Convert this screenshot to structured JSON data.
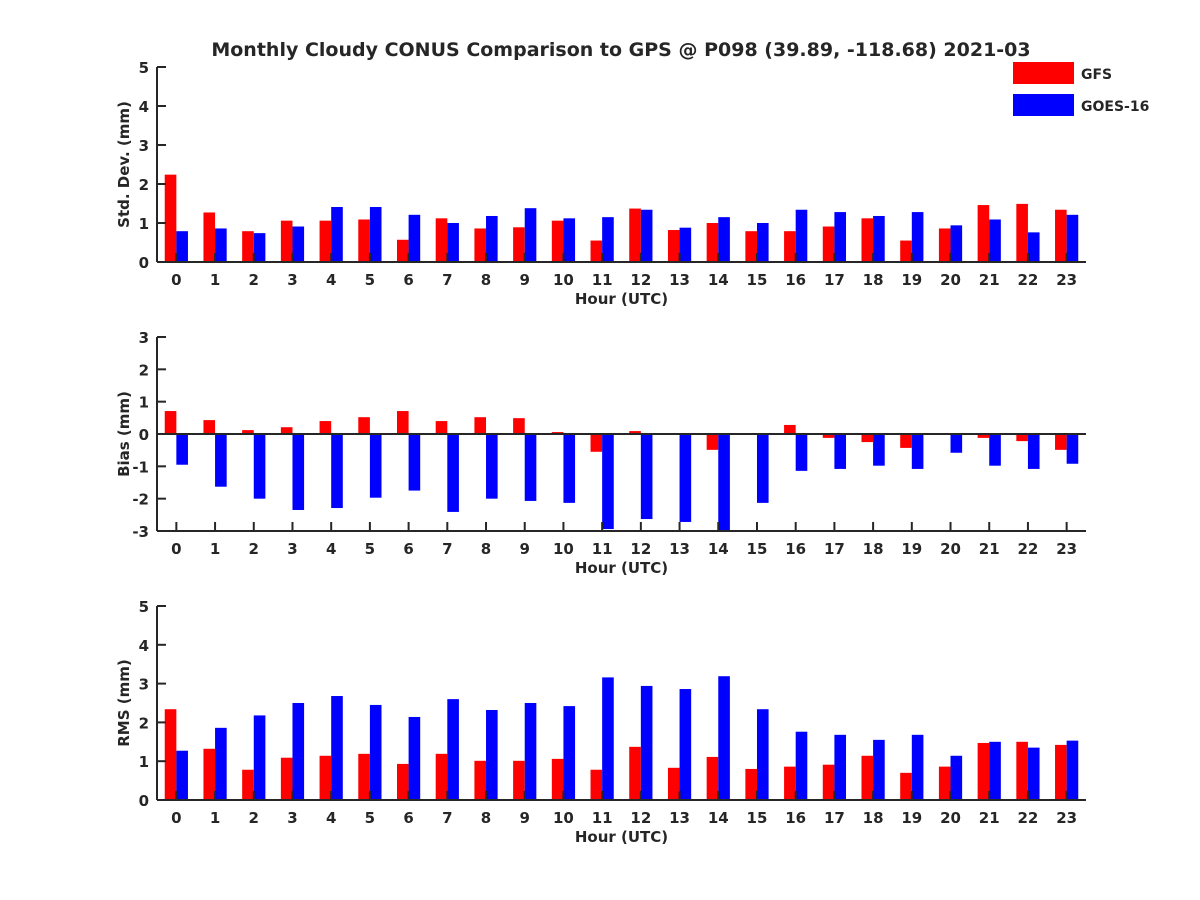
{
  "figure": {
    "title": "Monthly Cloudy CONUS Comparison to GPS @ P098 (39.89, -118.68) 2021-03",
    "legend": [
      {
        "name": "GFS",
        "color": "#ff0000"
      },
      {
        "name": "GOES-16",
        "color": "#0000ff"
      }
    ],
    "legend_position": "top-right"
  },
  "chart_data": [
    {
      "type": "bar",
      "xlabel": "Hour (UTC)",
      "ylabel": "Std. Dev. (mm)",
      "ylim": [
        0,
        5
      ],
      "yticks": [
        "0",
        "1",
        "2",
        "3",
        "4",
        "5"
      ],
      "categories": [
        "0",
        "1",
        "2",
        "3",
        "4",
        "5",
        "6",
        "7",
        "8",
        "9",
        "10",
        "11",
        "12",
        "13",
        "14",
        "15",
        "16",
        "17",
        "18",
        "19",
        "20",
        "21",
        "22",
        "23"
      ],
      "series": [
        {
          "name": "GFS",
          "color": "#ff0000",
          "values": [
            2.24,
            1.27,
            0.79,
            1.06,
            1.06,
            1.09,
            0.57,
            1.12,
            0.86,
            0.89,
            1.06,
            0.55,
            1.37,
            0.82,
            1.0,
            0.79,
            0.79,
            0.91,
            1.12,
            0.55,
            0.86,
            1.46,
            1.49,
            1.34
          ]
        },
        {
          "name": "GOES-16",
          "color": "#0000ff",
          "values": [
            0.79,
            0.86,
            0.74,
            0.91,
            1.41,
            1.41,
            1.21,
            1.0,
            1.18,
            1.38,
            1.12,
            1.15,
            1.34,
            0.88,
            1.15,
            1.0,
            1.34,
            1.28,
            1.18,
            1.28,
            0.94,
            1.09,
            0.76,
            1.21
          ]
        }
      ]
    },
    {
      "type": "bar",
      "xlabel": "Hour (UTC)",
      "ylabel": "Bias (mm)",
      "ylim": [
        -3,
        3
      ],
      "yticks": [
        "-3",
        "-2",
        "-1",
        "0",
        "1",
        "2",
        "3"
      ],
      "categories": [
        "0",
        "1",
        "2",
        "3",
        "4",
        "5",
        "6",
        "7",
        "8",
        "9",
        "10",
        "11",
        "12",
        "13",
        "14",
        "15",
        "16",
        "17",
        "18",
        "19",
        "20",
        "21",
        "22",
        "23"
      ],
      "series": [
        {
          "name": "GFS",
          "color": "#ff0000",
          "values": [
            0.71,
            0.43,
            0.12,
            0.21,
            0.4,
            0.52,
            0.71,
            0.4,
            0.52,
            0.49,
            0.06,
            -0.55,
            0.09,
            -0.03,
            -0.49,
            0.03,
            0.28,
            -0.12,
            -0.25,
            -0.43,
            0.0,
            -0.12,
            -0.22,
            -0.49
          ]
        },
        {
          "name": "GOES-16",
          "color": "#0000ff",
          "values": [
            -0.95,
            -1.63,
            -2.0,
            -2.35,
            -2.29,
            -1.97,
            -1.75,
            -2.41,
            -2.0,
            -2.07,
            -2.13,
            -2.94,
            -2.63,
            -2.72,
            -2.98,
            -2.13,
            -1.14,
            -1.08,
            -0.98,
            -1.08,
            -0.58,
            -0.98,
            -1.08,
            -0.92
          ]
        }
      ]
    },
    {
      "type": "bar",
      "xlabel": "Hour (UTC)",
      "ylabel": "RMS (mm)",
      "ylim": [
        0,
        5
      ],
      "yticks": [
        "0",
        "1",
        "2",
        "3",
        "4",
        "5"
      ],
      "categories": [
        "0",
        "1",
        "2",
        "3",
        "4",
        "5",
        "6",
        "7",
        "8",
        "9",
        "10",
        "11",
        "12",
        "13",
        "14",
        "15",
        "16",
        "17",
        "18",
        "19",
        "20",
        "21",
        "22",
        "23"
      ],
      "series": [
        {
          "name": "GFS",
          "color": "#ff0000",
          "values": [
            2.34,
            1.32,
            0.78,
            1.09,
            1.14,
            1.19,
            0.93,
            1.19,
            1.01,
            1.01,
            1.06,
            0.78,
            1.37,
            0.83,
            1.11,
            0.8,
            0.86,
            0.91,
            1.14,
            0.7,
            0.86,
            1.47,
            1.5,
            1.42
          ]
        },
        {
          "name": "GOES-16",
          "color": "#0000ff",
          "values": [
            1.27,
            1.86,
            2.18,
            2.5,
            2.68,
            2.45,
            2.14,
            2.6,
            2.32,
            2.5,
            2.42,
            3.16,
            2.94,
            2.86,
            3.19,
            2.34,
            1.76,
            1.68,
            1.55,
            1.68,
            1.14,
            1.5,
            1.35,
            1.53
          ]
        }
      ]
    }
  ]
}
